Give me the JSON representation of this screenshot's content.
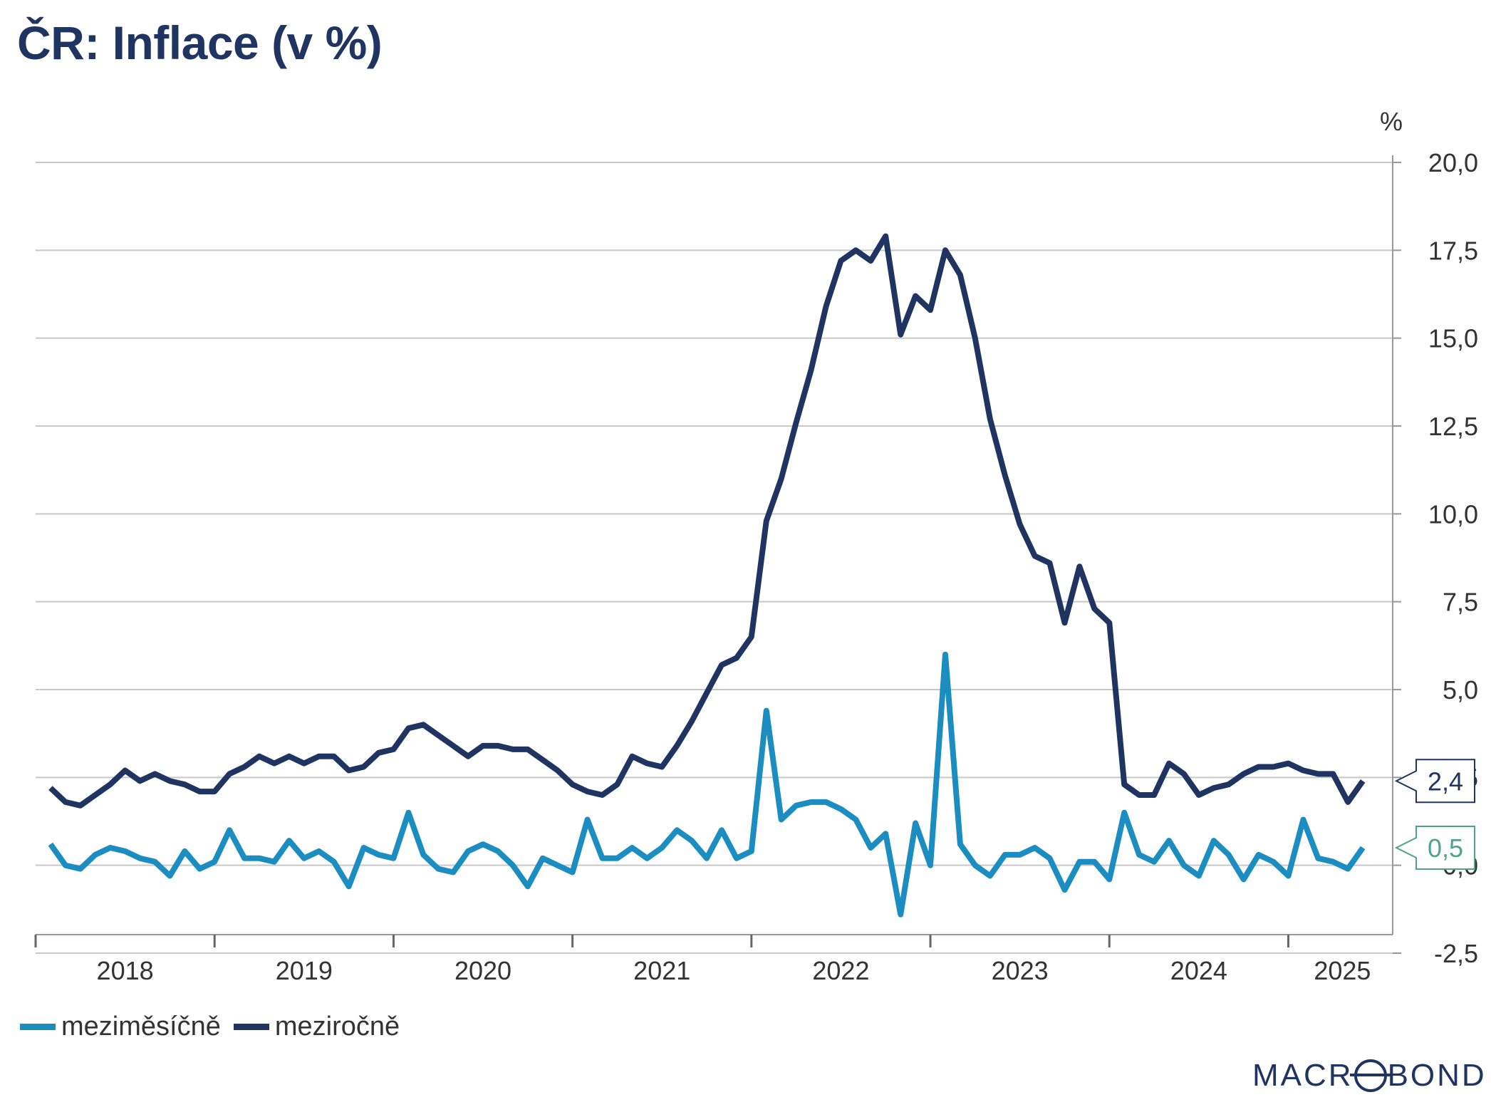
{
  "chart_data": {
    "type": "line",
    "title": "ČR: Inflace (v %)",
    "unit_label": "%",
    "ylim": [
      -2.5,
      20.0
    ],
    "y_ticks": [
      -2.5,
      0.0,
      2.5,
      5.0,
      7.5,
      10.0,
      12.5,
      15.0,
      17.5,
      20.0
    ],
    "y_tick_labels": [
      "-2,5",
      "0,0",
      "2,5",
      "5,0",
      "7,5",
      "10,0",
      "12,5",
      "15,0",
      "17,5",
      "20,0"
    ],
    "x_tick_labels": [
      "2018",
      "2019",
      "2020",
      "2021",
      "2022",
      "2023",
      "2024",
      "2025"
    ],
    "x_axis_start": "2017-12",
    "x_axis_end": "2025-07",
    "x_months": [
      "2018-01",
      "2018-02",
      "2018-03",
      "2018-04",
      "2018-05",
      "2018-06",
      "2018-07",
      "2018-08",
      "2018-09",
      "2018-10",
      "2018-11",
      "2018-12",
      "2019-01",
      "2019-02",
      "2019-03",
      "2019-04",
      "2019-05",
      "2019-06",
      "2019-07",
      "2019-08",
      "2019-09",
      "2019-10",
      "2019-11",
      "2019-12",
      "2020-01",
      "2020-02",
      "2020-03",
      "2020-04",
      "2020-05",
      "2020-06",
      "2020-07",
      "2020-08",
      "2020-09",
      "2020-10",
      "2020-11",
      "2020-12",
      "2021-01",
      "2021-02",
      "2021-03",
      "2021-04",
      "2021-05",
      "2021-06",
      "2021-07",
      "2021-08",
      "2021-09",
      "2021-10",
      "2021-11",
      "2021-12",
      "2022-01",
      "2022-02",
      "2022-03",
      "2022-04",
      "2022-05",
      "2022-06",
      "2022-07",
      "2022-08",
      "2022-09",
      "2022-10",
      "2022-11",
      "2022-12",
      "2023-01",
      "2023-02",
      "2023-03",
      "2023-04",
      "2023-05",
      "2023-06",
      "2023-07",
      "2023-08",
      "2023-09",
      "2023-10",
      "2023-11",
      "2023-12",
      "2024-01",
      "2024-02",
      "2024-03",
      "2024-04",
      "2024-05",
      "2024-06",
      "2024-07",
      "2024-08",
      "2024-09",
      "2024-10",
      "2024-11",
      "2024-12",
      "2025-01",
      "2025-02",
      "2025-03",
      "2025-04",
      "2025-05"
    ],
    "grid": true,
    "legend_position": "bottom-left",
    "series": [
      {
        "name": "meziměsíčně",
        "color": "#1b8dc0",
        "values": [
          0.6,
          0.0,
          -0.1,
          0.3,
          0.5,
          0.4,
          0.2,
          0.1,
          -0.3,
          0.4,
          -0.1,
          0.1,
          1.0,
          0.2,
          0.2,
          0.1,
          0.7,
          0.2,
          0.4,
          0.1,
          -0.6,
          0.5,
          0.3,
          0.2,
          1.5,
          0.3,
          -0.1,
          -0.2,
          0.4,
          0.6,
          0.4,
          0.0,
          -0.6,
          0.2,
          0.0,
          -0.2,
          1.3,
          0.2,
          0.2,
          0.5,
          0.2,
          0.5,
          1.0,
          0.7,
          0.2,
          1.0,
          0.2,
          0.4,
          4.4,
          1.3,
          1.7,
          1.8,
          1.8,
          1.6,
          1.3,
          0.5,
          0.9,
          -1.4,
          1.2,
          0.0,
          6.0,
          0.6,
          0.0,
          -0.3,
          0.3,
          0.3,
          0.5,
          0.2,
          -0.7,
          0.1,
          0.1,
          -0.4,
          1.5,
          0.3,
          0.1,
          0.7,
          0.0,
          -0.3,
          0.7,
          0.3,
          -0.4,
          0.3,
          0.1,
          -0.3,
          1.3,
          0.2,
          0.1,
          -0.1,
          0.5
        ]
      },
      {
        "name": "meziročně",
        "color": "#1f3460",
        "values": [
          2.2,
          1.8,
          1.7,
          2.0,
          2.3,
          2.7,
          2.4,
          2.6,
          2.4,
          2.3,
          2.1,
          2.1,
          2.6,
          2.8,
          3.1,
          2.9,
          3.1,
          2.9,
          3.1,
          3.1,
          2.7,
          2.8,
          3.2,
          3.3,
          3.9,
          4.0,
          3.7,
          3.4,
          3.1,
          3.4,
          3.4,
          3.3,
          3.3,
          3.0,
          2.7,
          2.3,
          2.1,
          2.0,
          2.3,
          3.1,
          2.9,
          2.8,
          3.4,
          4.1,
          4.9,
          5.7,
          5.9,
          6.5,
          9.8,
          11.0,
          12.6,
          14.1,
          15.9,
          17.2,
          17.5,
          17.2,
          17.9,
          15.1,
          16.2,
          15.8,
          17.5,
          16.8,
          15.0,
          12.7,
          11.1,
          9.7,
          8.8,
          8.6,
          6.9,
          8.5,
          7.3,
          6.9,
          2.3,
          2.0,
          2.0,
          2.9,
          2.6,
          2.0,
          2.2,
          2.3,
          2.6,
          2.8,
          2.8,
          2.9,
          2.7,
          2.6,
          2.6,
          1.8,
          2.4
        ]
      }
    ],
    "end_labels": [
      {
        "series": "meziročně",
        "text": "2,4",
        "color": "#1f3460"
      },
      {
        "series": "meziměsíčně",
        "text": "0,5",
        "color": "#4fa38a"
      }
    ]
  },
  "legend": {
    "items": [
      {
        "label": "meziměsíčně",
        "color": "#1b8dc0"
      },
      {
        "label": "meziročně",
        "color": "#1f3460"
      }
    ]
  },
  "branding": {
    "logo_text": "MACROBOND",
    "logo_prefix": "MACR",
    "logo_suffix": "BOND"
  },
  "colors": {
    "title": "#1f3460",
    "grid": "#c8c8c8",
    "axis": "#999999"
  }
}
